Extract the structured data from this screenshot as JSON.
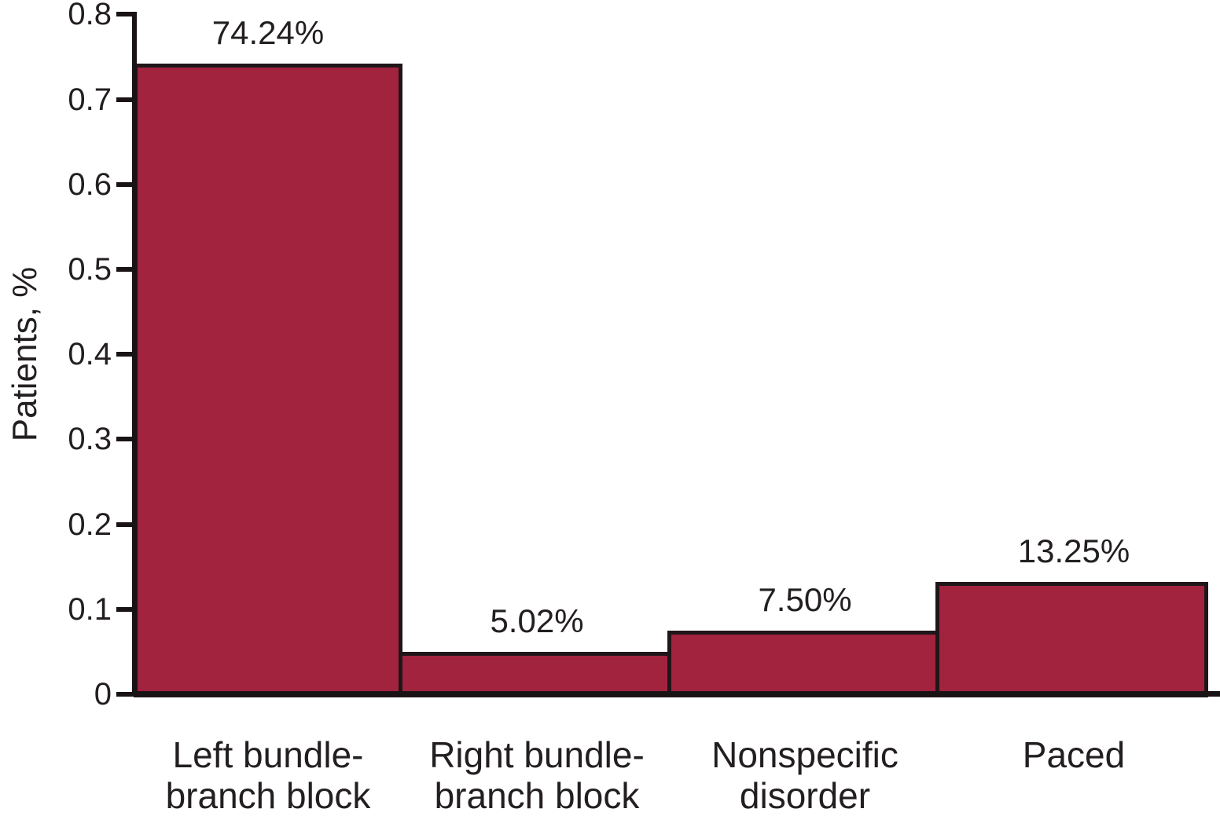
{
  "chart_data": {
    "type": "bar",
    "title": "",
    "ylabel": "Patients, %",
    "xlabel": "",
    "categories": [
      {
        "lines": [
          "Left bundle-",
          "branch block"
        ]
      },
      {
        "lines": [
          "Right bundle-",
          "branch block"
        ]
      },
      {
        "lines": [
          "Nonspecific",
          "disorder"
        ]
      },
      {
        "lines": [
          "Paced"
        ]
      }
    ],
    "values": [
      0.7424,
      0.0502,
      0.075,
      0.1325
    ],
    "value_labels": [
      "74.24%",
      "5.02%",
      "7.50%",
      "13.25%"
    ],
    "ylim": [
      0,
      0.8
    ],
    "yticks": [
      "0",
      "0.1",
      "0.2",
      "0.3",
      "0.4",
      "0.5",
      "0.6",
      "0.7",
      "0.8"
    ],
    "grid": false,
    "legend": "none",
    "colors": {
      "bar_fill": "#A1233E",
      "bar_border": "#20161A",
      "axis": "#1A1315",
      "text": "#231F20",
      "background": "#FFFFFF"
    }
  }
}
